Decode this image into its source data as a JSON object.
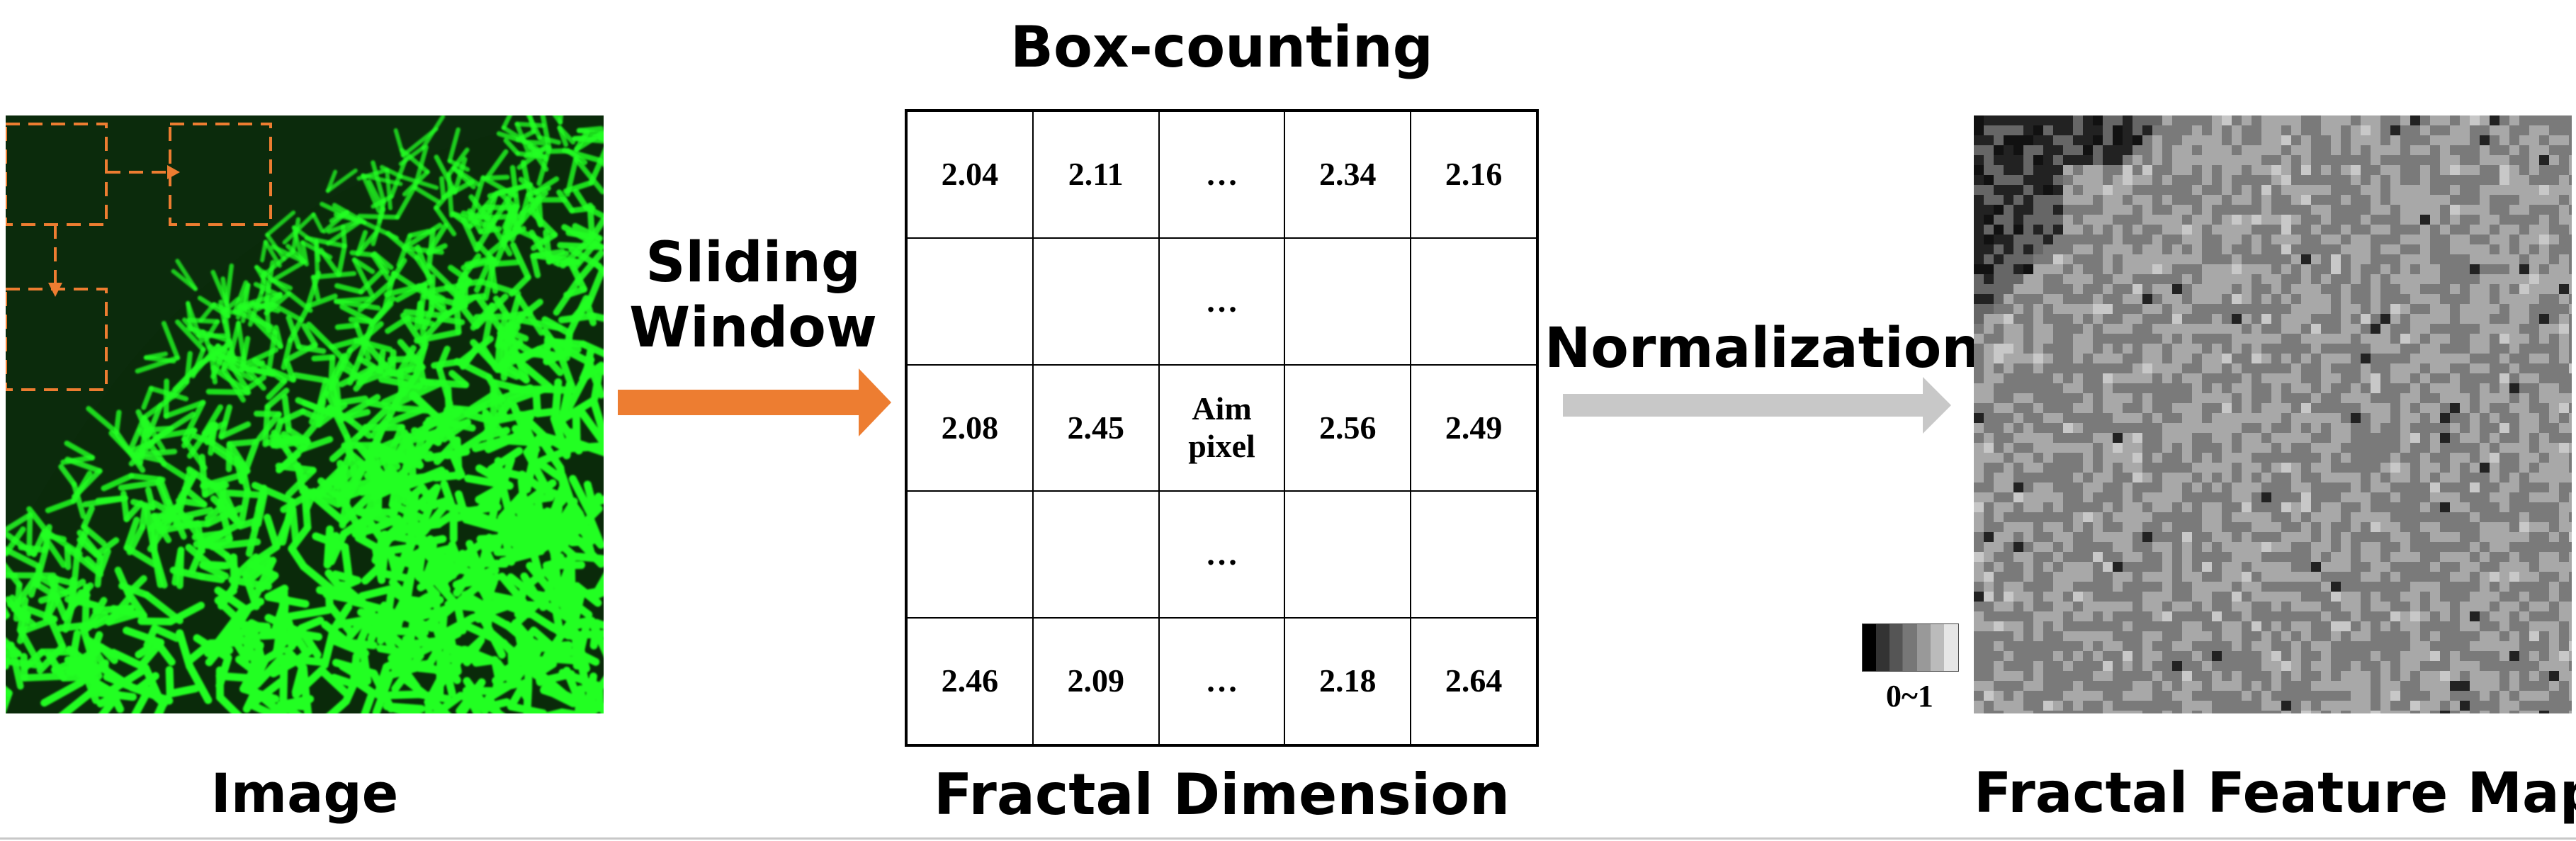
{
  "labels": {
    "image": "Image",
    "sliding_window_line1": "Sliding",
    "sliding_window_line2": "Window",
    "box_counting": "Box-counting",
    "fractal_dimension": "Fractal Dimension",
    "normalization": "Normalization",
    "fractal_feature_map": "Fractal Feature Map",
    "colorbar_range": "0~1"
  },
  "grid": {
    "rows": [
      [
        "2.04",
        "2.11",
        "…",
        "2.34",
        "2.16"
      ],
      [
        "",
        "",
        "…",
        "",
        ""
      ],
      [
        "2.08",
        "2.45",
        "Aim\npixel",
        "2.56",
        "2.49"
      ],
      [
        "",
        "",
        "…",
        "",
        ""
      ],
      [
        "2.46",
        "2.09",
        "…",
        "2.18",
        "2.64"
      ]
    ]
  },
  "colors": {
    "micrograph_green": "#22ff22",
    "sliding_arrow": "#ed7d31",
    "normalization_arrow": "#c8c8c8",
    "dashed_window": "#ed7d31"
  },
  "icons": {
    "sliding_arrow": "right-arrow-icon",
    "normalization_arrow": "right-arrow-icon"
  }
}
